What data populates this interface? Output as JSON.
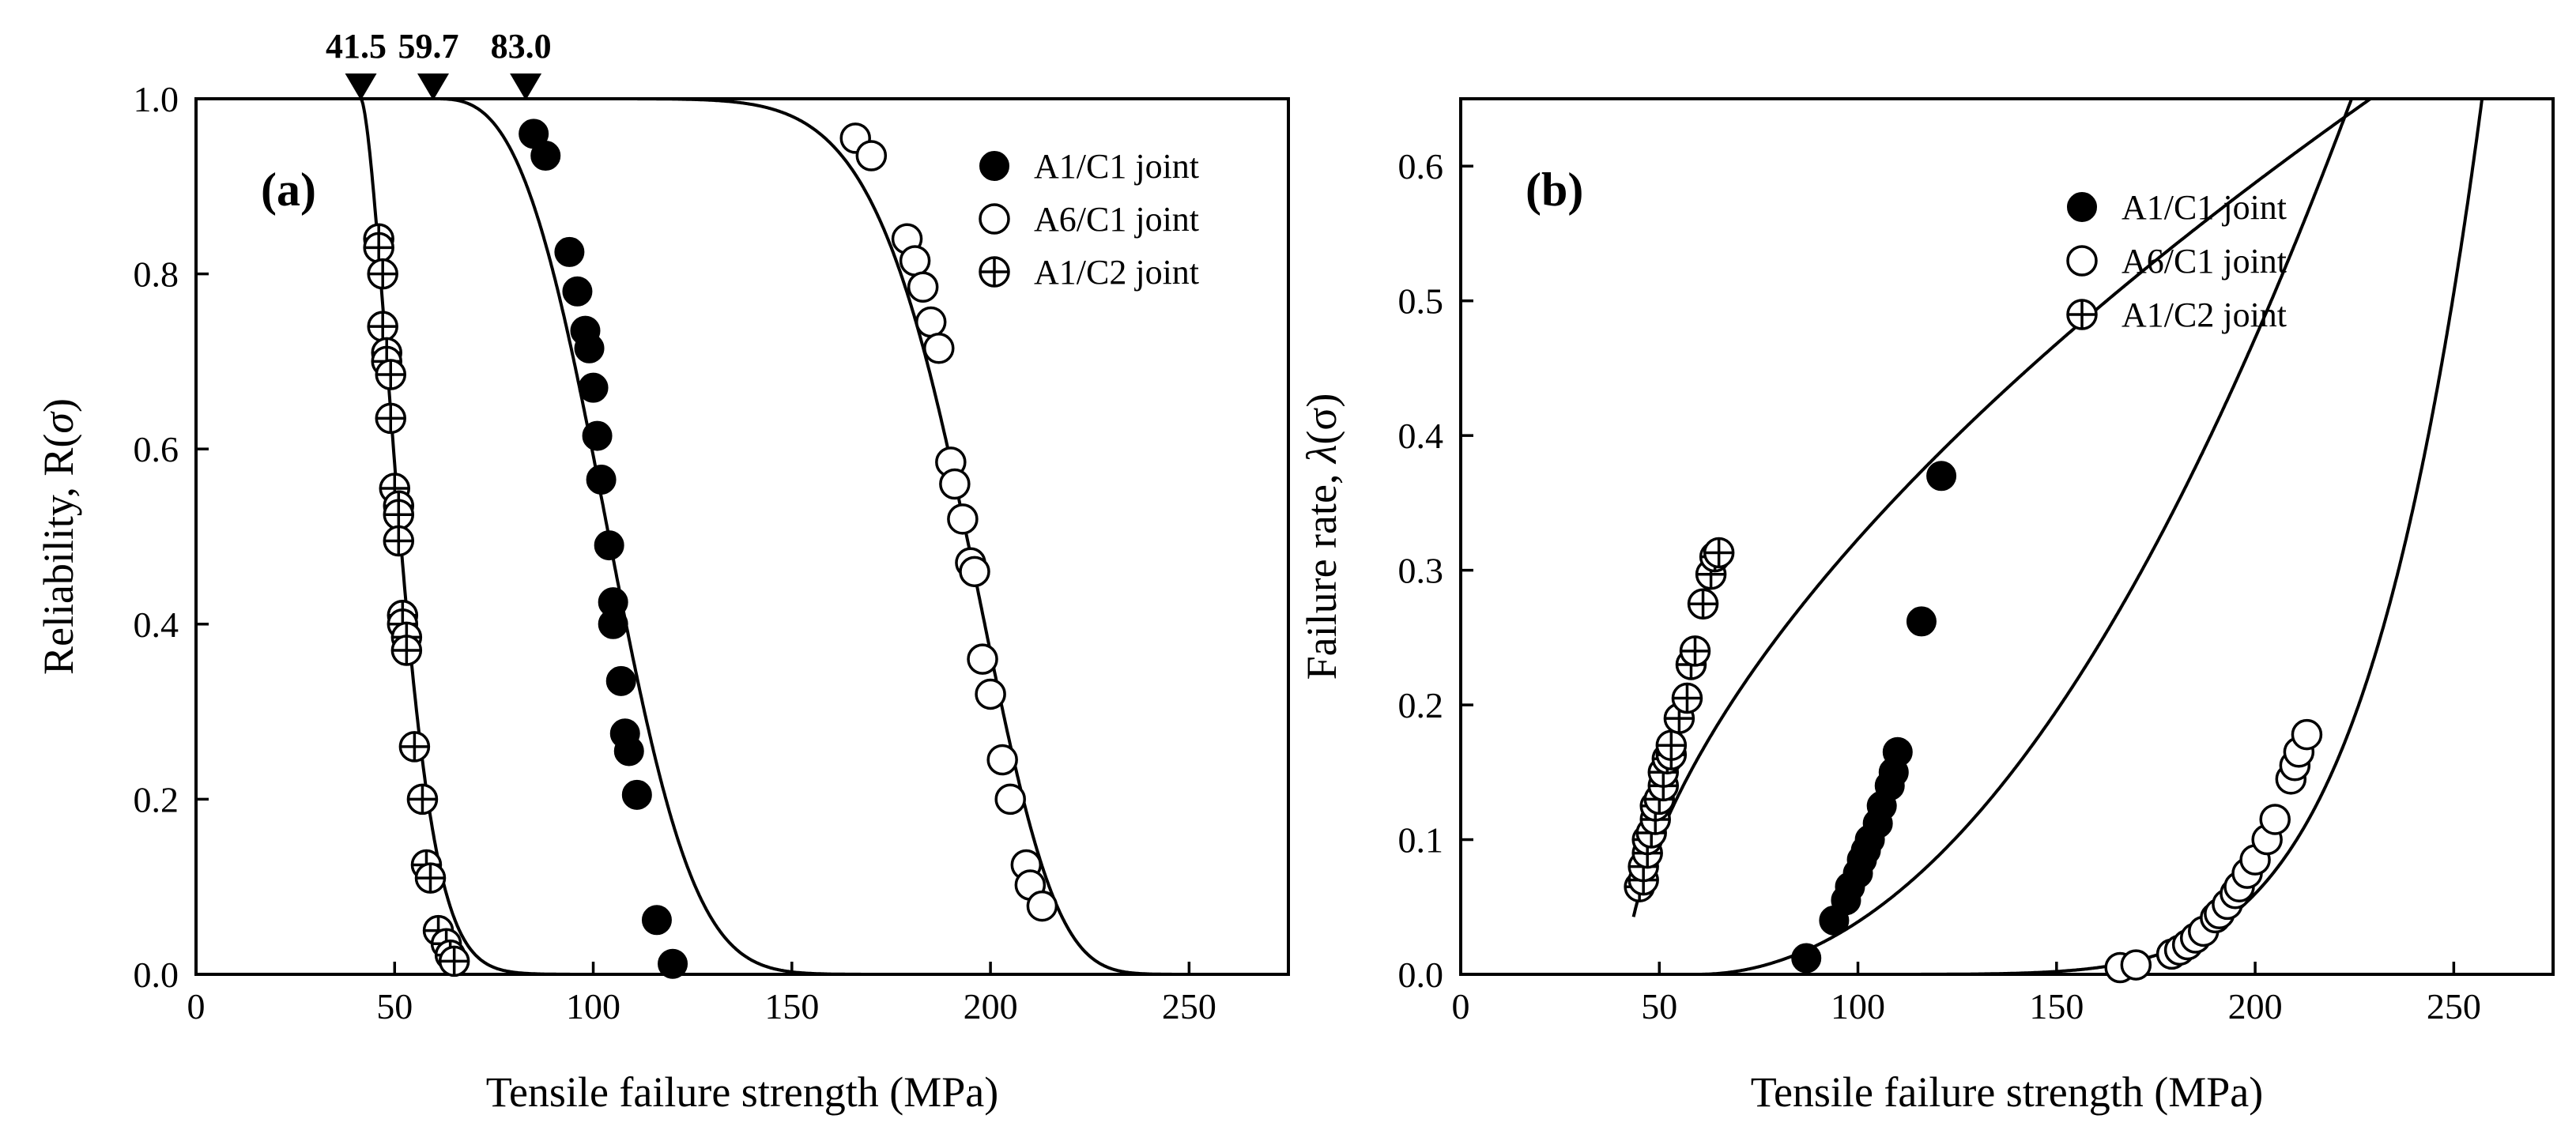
{
  "chart_data": [
    {
      "panel": "a",
      "panel_label": "(a)",
      "type": "scatter",
      "xlabel": "Tensile failure strength (MPa)",
      "ylabel_prefix": "Reliability, R(",
      "ylabel_symbol": "σ",
      "ylabel_suffix": ")",
      "xlim": [
        0,
        275
      ],
      "ylim": [
        0,
        1.0
      ],
      "xticks": [
        "0",
        "50",
        "100",
        "150",
        "200",
        "250"
      ],
      "yticks": [
        "0.0",
        "0.2",
        "0.4",
        "0.6",
        "0.8",
        "1.0"
      ],
      "legend_position": "top-right",
      "markers": [
        {
          "label": "41.5",
          "x": 41.5
        },
        {
          "label": "59.7",
          "x": 59.7
        },
        {
          "label": "83.0",
          "x": 83.0
        }
      ],
      "series": [
        {
          "name": "A1/C1 joint",
          "marker": "filled-circle",
          "fit": {
            "model": "weibull3",
            "loc": 59.7,
            "scale": 50.0,
            "shape": 3.0
          },
          "points": [
            [
              85,
              0.96
            ],
            [
              88,
              0.935
            ],
            [
              94,
              0.825
            ],
            [
              96,
              0.78
            ],
            [
              98,
              0.735
            ],
            [
              99,
              0.715
            ],
            [
              100,
              0.67
            ],
            [
              101,
              0.615
            ],
            [
              102,
              0.565
            ],
            [
              104,
              0.49
            ],
            [
              105,
              0.425
            ],
            [
              105,
              0.4
            ],
            [
              107,
              0.335
            ],
            [
              108,
              0.275
            ],
            [
              109,
              0.255
            ],
            [
              111,
              0.205
            ],
            [
              116,
              0.062
            ],
            [
              120,
              0.012
            ]
          ]
        },
        {
          "name": "A6/C1 joint",
          "marker": "open-circle",
          "fit": {
            "model": "weibull3",
            "loc": 83.0,
            "scale": 117.0,
            "shape": 7.0
          },
          "points": [
            [
              166,
              0.955
            ],
            [
              170,
              0.935
            ],
            [
              179,
              0.84
            ],
            [
              181,
              0.815
            ],
            [
              183,
              0.785
            ],
            [
              185,
              0.745
            ],
            [
              187,
              0.715
            ],
            [
              190,
              0.585
            ],
            [
              191,
              0.56
            ],
            [
              193,
              0.52
            ],
            [
              195,
              0.47
            ],
            [
              196,
              0.46
            ],
            [
              198,
              0.36
            ],
            [
              200,
              0.32
            ],
            [
              203,
              0.245
            ],
            [
              205,
              0.2
            ],
            [
              209,
              0.125
            ],
            [
              210,
              0.102
            ],
            [
              213,
              0.078
            ]
          ]
        },
        {
          "name": "A1/C2 joint",
          "marker": "crossed-circle",
          "fit": {
            "model": "weibull3",
            "loc": 41.5,
            "scale": 12.5,
            "shape": 1.6
          },
          "points": [
            [
              46,
              0.84
            ],
            [
              46,
              0.83
            ],
            [
              47,
              0.8
            ],
            [
              47,
              0.74
            ],
            [
              48,
              0.71
            ],
            [
              48,
              0.7
            ],
            [
              49,
              0.685
            ],
            [
              49,
              0.635
            ],
            [
              50,
              0.555
            ],
            [
              51,
              0.535
            ],
            [
              51,
              0.525
            ],
            [
              51,
              0.495
            ],
            [
              52,
              0.41
            ],
            [
              52,
              0.4
            ],
            [
              53,
              0.385
            ],
            [
              53,
              0.37
            ],
            [
              55,
              0.26
            ],
            [
              57,
              0.2
            ],
            [
              58,
              0.125
            ],
            [
              59,
              0.11
            ],
            [
              61,
              0.05
            ],
            [
              63,
              0.035
            ],
            [
              64,
              0.022
            ],
            [
              65,
              0.015
            ]
          ]
        }
      ]
    },
    {
      "panel": "b",
      "panel_label": "(b)",
      "type": "scatter",
      "xlabel": "Tensile failure strength (MPa)",
      "ylabel_prefix": "Failure rate, ",
      "ylabel_symbol": "λ",
      "ylabel_suffix": "(σ)",
      "xlim": [
        0,
        275
      ],
      "ylim": [
        0,
        0.65
      ],
      "xticks": [
        "0",
        "50",
        "100",
        "150",
        "200",
        "250"
      ],
      "yticks": [
        "0.0",
        "0.1",
        "0.2",
        "0.3",
        "0.4",
        "0.5",
        "0.6"
      ],
      "legend_position": "top-right",
      "series": [
        {
          "name": "A1/C1 joint",
          "marker": "filled-circle",
          "fit": {
            "model": "power",
            "loc": 59.7,
            "scale": 50.0,
            "shape": 3.0
          },
          "points": [
            [
              87,
              0.012
            ],
            [
              94,
              0.04
            ],
            [
              97,
              0.055
            ],
            [
              98,
              0.065
            ],
            [
              100,
              0.075
            ],
            [
              101,
              0.085
            ],
            [
              102,
              0.092
            ],
            [
              103,
              0.1
            ],
            [
              105,
              0.112
            ],
            [
              106,
              0.125
            ],
            [
              108,
              0.14
            ],
            [
              109,
              0.15
            ],
            [
              110,
              0.165
            ],
            [
              116,
              0.262
            ],
            [
              121,
              0.37
            ]
          ]
        },
        {
          "name": "A6/C1 joint",
          "marker": "open-circle",
          "fit": {
            "model": "power",
            "loc": 83.0,
            "scale": 117.0,
            "shape": 7.0
          },
          "points": [
            [
              166,
              0.005
            ],
            [
              170,
              0.007
            ],
            [
              179,
              0.015
            ],
            [
              181,
              0.018
            ],
            [
              183,
              0.022
            ],
            [
              185,
              0.027
            ],
            [
              187,
              0.032
            ],
            [
              190,
              0.042
            ],
            [
              191,
              0.045
            ],
            [
              193,
              0.052
            ],
            [
              195,
              0.06
            ],
            [
              196,
              0.065
            ],
            [
              198,
              0.075
            ],
            [
              200,
              0.085
            ],
            [
              203,
              0.1
            ],
            [
              205,
              0.115
            ],
            [
              209,
              0.145
            ],
            [
              210,
              0.155
            ],
            [
              211,
              0.165
            ],
            [
              213,
              0.178
            ]
          ]
        },
        {
          "name": "A1/C2 joint",
          "marker": "crossed-circle",
          "fit": {
            "model": "power",
            "loc": 41.5,
            "scale": 12.5,
            "shape": 1.6
          },
          "points": [
            [
              45,
              0.065
            ],
            [
              46,
              0.07
            ],
            [
              46,
              0.08
            ],
            [
              47,
              0.09
            ],
            [
              47,
              0.1
            ],
            [
              48,
              0.105
            ],
            [
              49,
              0.115
            ],
            [
              49,
              0.125
            ],
            [
              50,
              0.13
            ],
            [
              51,
              0.14
            ],
            [
              51,
              0.15
            ],
            [
              52,
              0.16
            ],
            [
              53,
              0.163
            ],
            [
              53,
              0.17
            ],
            [
              55,
              0.19
            ],
            [
              57,
              0.205
            ],
            [
              58,
              0.23
            ],
            [
              59,
              0.24
            ],
            [
              61,
              0.275
            ],
            [
              63,
              0.297
            ],
            [
              64,
              0.31
            ],
            [
              65,
              0.313
            ]
          ]
        }
      ]
    }
  ]
}
